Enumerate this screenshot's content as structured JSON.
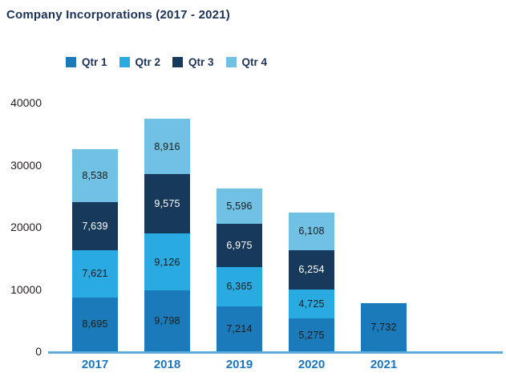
{
  "title": "Company Incorporations (2017 - 2021)",
  "colors": {
    "title_text": "#1C3257",
    "legend_text": "#1C3257",
    "ytick_text": "#231F20",
    "xtick_text": "#1C76BD",
    "axis_line": "#60AAD8",
    "background": "#FFFFFF"
  },
  "chart_data": {
    "type": "bar",
    "stacked": true,
    "title": "Company Incorporations (2017 - 2021)",
    "categories": [
      "2017",
      "2018",
      "2019",
      "2020",
      "2021"
    ],
    "series": [
      {
        "name": "Qtr 1",
        "color": "#1B7AB9",
        "label_color": "#1A1A1A",
        "values": [
          8695,
          9798,
          7214,
          5275,
          7732
        ]
      },
      {
        "name": "Qtr 2",
        "color": "#29ABE2",
        "label_color": "#1A1A1A",
        "values": [
          7621,
          9126,
          6365,
          4725,
          null
        ]
      },
      {
        "name": "Qtr 3",
        "color": "#16395C",
        "label_color": "#FFFFFF",
        "values": [
          7639,
          9575,
          6975,
          6254,
          null
        ]
      },
      {
        "name": "Qtr 4",
        "color": "#70C1E3",
        "label_color": "#1A1A1A",
        "values": [
          8538,
          8916,
          5596,
          6108,
          null
        ]
      }
    ],
    "ylim": [
      0,
      40000
    ],
    "yticks": [
      0,
      10000,
      20000,
      30000,
      40000
    ],
    "grid": false,
    "legend_position": "top",
    "xlabel": "",
    "ylabel": ""
  }
}
